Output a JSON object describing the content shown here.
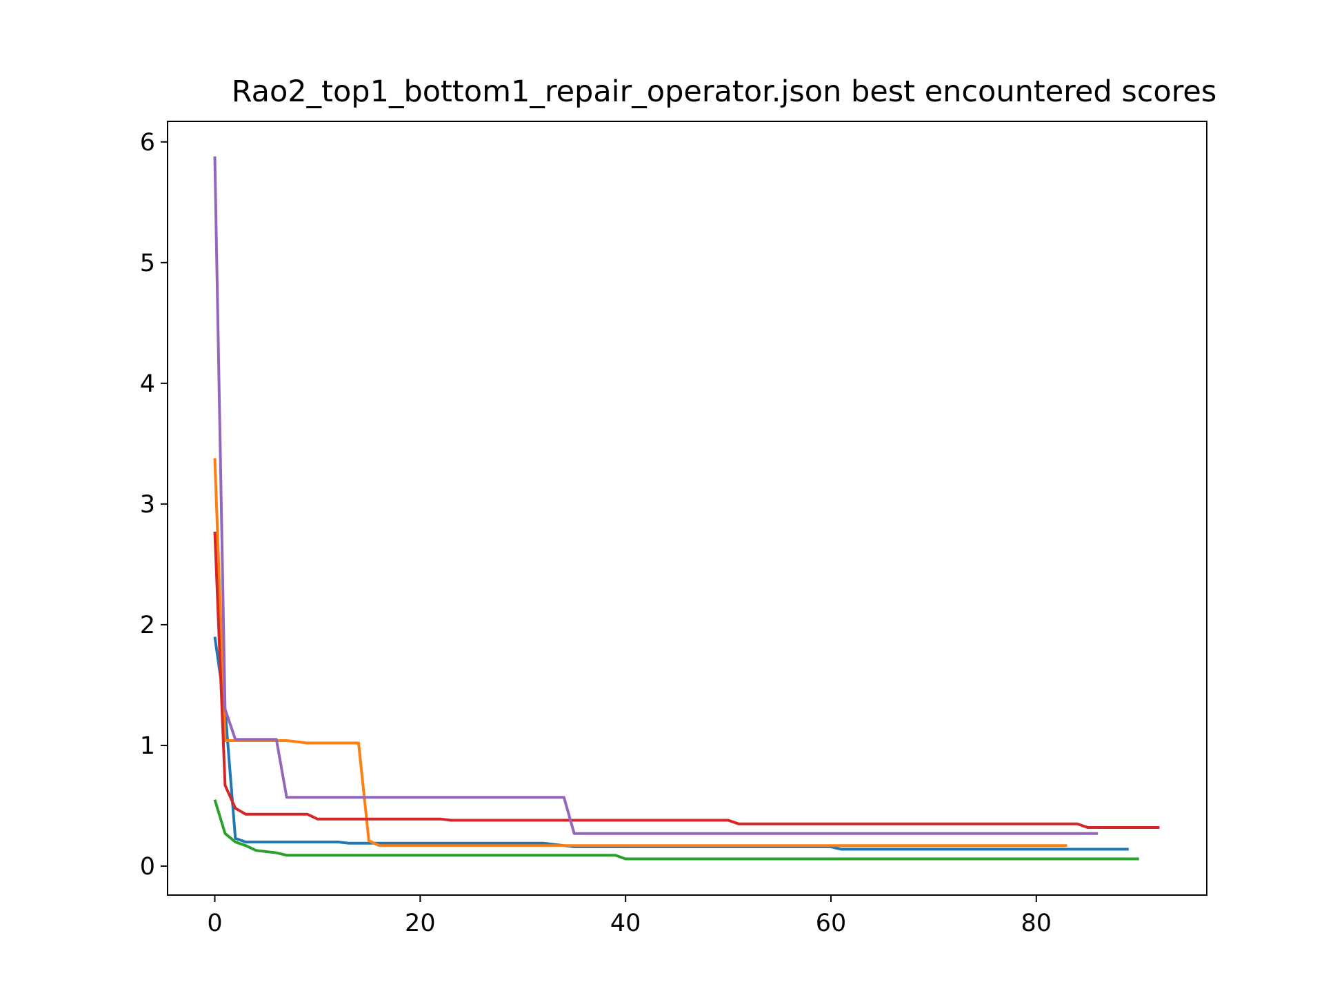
{
  "chart_data": {
    "type": "line",
    "title": "Rao2_top1_bottom1_repair_operator.json best encountered scores",
    "xlabel": "",
    "ylabel": "",
    "xlim": [
      -4.6,
      96.6
    ],
    "ylim": [
      -0.24,
      6.17
    ],
    "xticks": [
      0,
      20,
      40,
      60,
      80
    ],
    "yticks": [
      0,
      1,
      2,
      3,
      4,
      5,
      6
    ],
    "grid": false,
    "legend": "none",
    "series": [
      {
        "color": "#1f77b4",
        "points": [
          [
            0,
            1.9
          ],
          [
            1,
            1.3
          ],
          [
            2,
            0.23
          ],
          [
            3,
            0.2
          ],
          [
            12,
            0.2
          ],
          [
            13,
            0.19
          ],
          [
            15,
            0.19
          ],
          [
            16,
            0.19
          ],
          [
            32,
            0.19
          ],
          [
            35,
            0.16
          ],
          [
            60,
            0.16
          ],
          [
            61,
            0.14
          ],
          [
            89,
            0.14
          ]
        ]
      },
      {
        "color": "#ff7f0e",
        "points": [
          [
            0,
            3.38
          ],
          [
            1,
            1.04
          ],
          [
            7,
            1.04
          ],
          [
            8,
            1.03
          ],
          [
            9,
            1.02
          ],
          [
            14,
            1.02
          ],
          [
            15,
            0.21
          ],
          [
            16,
            0.17
          ],
          [
            83,
            0.17
          ]
        ]
      },
      {
        "color": "#2ca02c",
        "points": [
          [
            0,
            0.55
          ],
          [
            1,
            0.27
          ],
          [
            2,
            0.2
          ],
          [
            3,
            0.17
          ],
          [
            4,
            0.13
          ],
          [
            6,
            0.11
          ],
          [
            7,
            0.09
          ],
          [
            39,
            0.09
          ],
          [
            40,
            0.06
          ],
          [
            90,
            0.06
          ]
        ]
      },
      {
        "color": "#d62728",
        "points": [
          [
            0,
            2.77
          ],
          [
            1,
            0.67
          ],
          [
            2,
            0.48
          ],
          [
            3,
            0.43
          ],
          [
            9,
            0.43
          ],
          [
            10,
            0.39
          ],
          [
            22,
            0.39
          ],
          [
            23,
            0.38
          ],
          [
            50,
            0.38
          ],
          [
            51,
            0.35
          ],
          [
            84,
            0.35
          ],
          [
            85,
            0.32
          ],
          [
            92,
            0.32
          ]
        ]
      },
      {
        "color": "#9467bd",
        "points": [
          [
            0,
            5.88
          ],
          [
            1,
            1.3
          ],
          [
            2,
            1.05
          ],
          [
            6,
            1.05
          ],
          [
            7,
            0.57
          ],
          [
            34,
            0.57
          ],
          [
            35,
            0.27
          ],
          [
            86,
            0.27
          ]
        ]
      }
    ]
  }
}
